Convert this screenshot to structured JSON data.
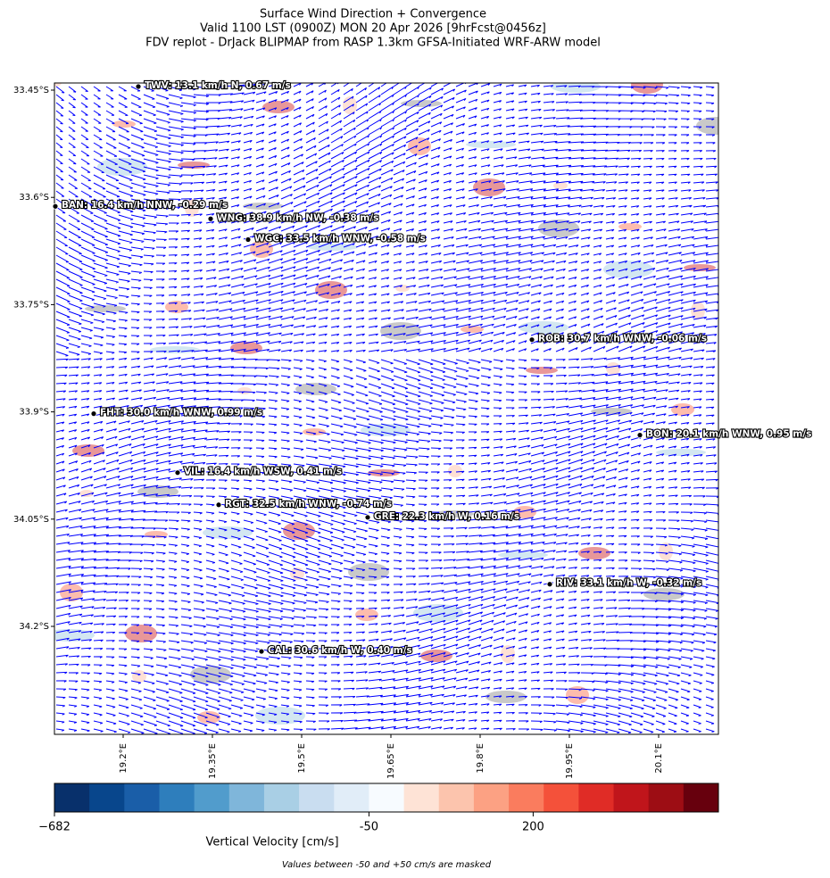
{
  "chart_data": {
    "type": "map",
    "title": [
      "Surface Wind Direction + Convergence",
      "Valid 1100 LST (0900Z) MON 20 Apr 2026 [9hrFcst@0456z]",
      "FDV replot - DrJack BLIPMAP from RASP 1.3km GFSA-Initiated WRF-ARW model"
    ],
    "xlim": [
      19.0845,
      20.2005
    ],
    "ylim": [
      -34.351,
      -33.44
    ],
    "xticks": [
      {
        "value": 19.2,
        "label": "19.2°E"
      },
      {
        "value": 19.35,
        "label": "19.35°E"
      },
      {
        "value": 19.5,
        "label": "19.5°E"
      },
      {
        "value": 19.65,
        "label": "19.65°E"
      },
      {
        "value": 19.8,
        "label": "19.8°E"
      },
      {
        "value": 19.95,
        "label": "19.95°E"
      },
      {
        "value": 20.1,
        "label": "20.1°E"
      }
    ],
    "yticks": [
      {
        "value": -33.45,
        "label": "33.45°S"
      },
      {
        "value": -33.6,
        "label": "33.6°S"
      },
      {
        "value": -33.75,
        "label": "33.75°S"
      },
      {
        "value": -33.9,
        "label": "33.9°S"
      },
      {
        "value": -34.05,
        "label": "34.05°S"
      },
      {
        "value": -34.2,
        "label": "34.2°S"
      }
    ],
    "wind_color": "#0000ff",
    "stations": [
      {
        "label": "TWV: 13.1 km/h N, 0.67 m/s",
        "lon": 19.2255,
        "lat": -33.445
      },
      {
        "label": "BAN: 16.4 km/h NNW, -0.29 m/s",
        "lon": 19.086,
        "lat": -33.6125
      },
      {
        "label": "WNG: 38.9 km/h NW, -0.38 m/s",
        "lon": 19.347,
        "lat": -33.63
      },
      {
        "label": "WGC: 33.5 km/h WNW, -0.58 m/s",
        "lon": 19.41,
        "lat": -33.659
      },
      {
        "label": "ROB: 30.7 km/h WNW, -0.06 m/s",
        "lon": 19.887,
        "lat": -33.799
      },
      {
        "label": "FHT: 30.0 km/h WNW, 0.99 m/s",
        "lon": 19.1505,
        "lat": -33.9025
      },
      {
        "label": "BON: 20.1 km/h WNW, 0.95 m/s",
        "lon": 20.0685,
        "lat": -33.9325
      },
      {
        "label": "VIL: 16.4 km/h WSW, 0.41 m/s",
        "lon": 19.2915,
        "lat": -33.985
      },
      {
        "label": "RGT: 32.5 km/h WNW, -0.74 m/s",
        "lon": 19.3605,
        "lat": -34.03
      },
      {
        "label": "GRE: 22.3 km/h W, 0.16 m/s",
        "lon": 19.611,
        "lat": -34.0475
      },
      {
        "label": "RIV: 33.1 km/h W, -0.32 m/s",
        "lon": 19.917,
        "lat": -34.141
      },
      {
        "label": "CAL: 30.6 km/h W, 0.40 m/s",
        "lon": 19.4325,
        "lat": -34.235
      }
    ],
    "colorbar": {
      "label": "Vertical Velocity [cm/s]",
      "boundaries": [
        -682,
        -612,
        -542,
        -471,
        -401,
        -331,
        -261,
        -190,
        -120,
        -50,
        3,
        56,
        110,
        163,
        216,
        269,
        322,
        376,
        429,
        482
      ],
      "colors": [
        "#08306b",
        "#08468c",
        "#1a5ea8",
        "#2e7ebc",
        "#519ccc",
        "#7fb6da",
        "#a9cfe5",
        "#c9ddf0",
        "#e1edf8",
        "#f7fbff",
        "#fee3d6",
        "#fcc4ad",
        "#fca183",
        "#fa7c5e",
        "#f4513a",
        "#e02c26",
        "#c0151b",
        "#9d0d14",
        "#67000d"
      ],
      "ticks": [
        {
          "value": -682,
          "label": "−682"
        },
        -50,
        200
      ]
    },
    "note": "Values between -50 and +50 cm/s are masked"
  }
}
